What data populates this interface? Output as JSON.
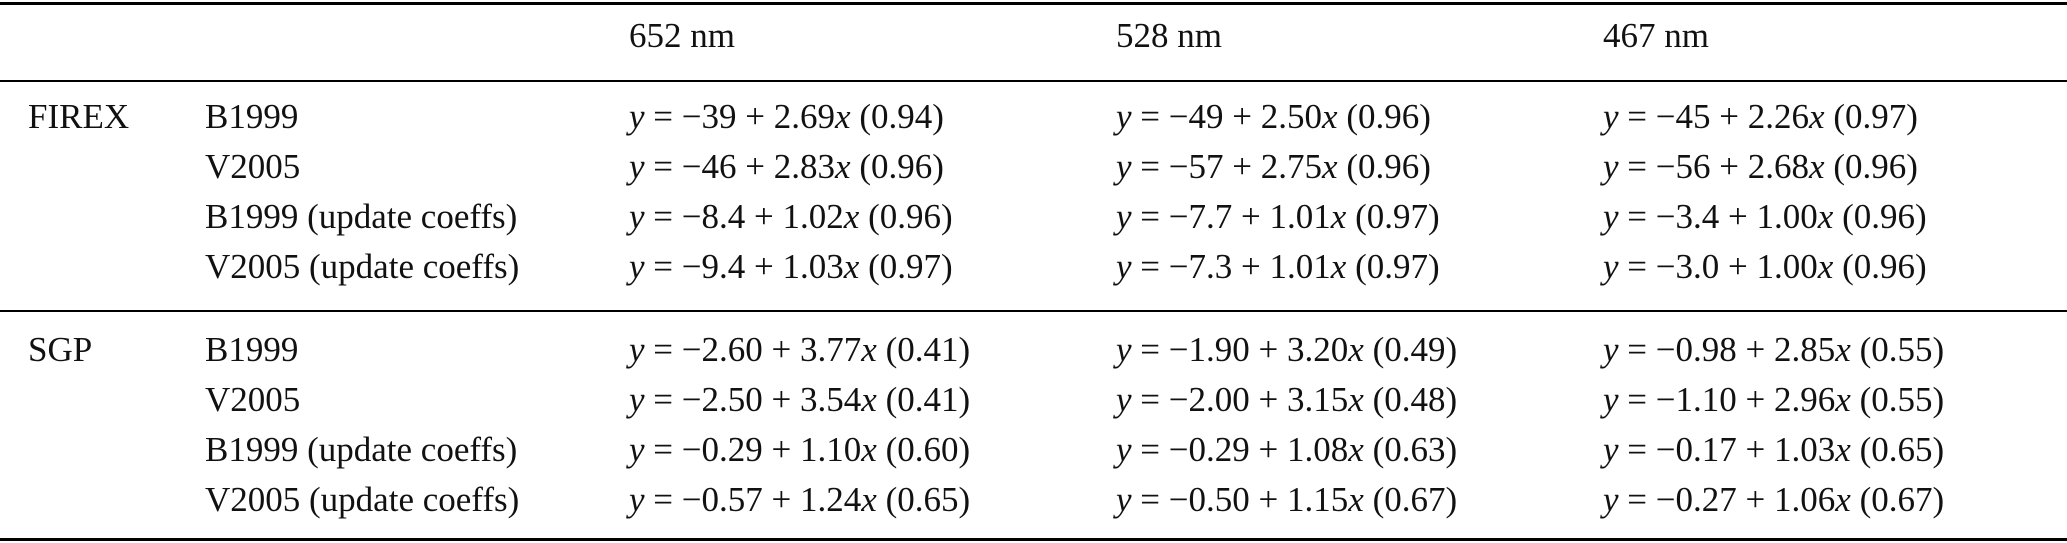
{
  "table": {
    "headers": [
      "",
      "",
      "652 nm",
      "528 nm",
      "467 nm"
    ],
    "groups": [
      {
        "name": "FIREX",
        "rows": [
          {
            "method": "B1999",
            "cells": [
              "y = −39 + 2.69x (0.94)",
              "y = −49 + 2.50x (0.96)",
              "y = −45 + 2.26x (0.97)"
            ]
          },
          {
            "method": "V2005",
            "cells": [
              "y = −46 + 2.83x (0.96)",
              "y = −57 + 2.75x (0.96)",
              "y = −56 + 2.68x (0.96)"
            ]
          },
          {
            "method": "B1999 (update coeffs)",
            "cells": [
              "y = −8.4 + 1.02x (0.96)",
              "y = −7.7 + 1.01x (0.97)",
              "y = −3.4 + 1.00x (0.96)"
            ]
          },
          {
            "method": "V2005 (update coeffs)",
            "cells": [
              "y = −9.4 + 1.03x (0.97)",
              "y = −7.3 + 1.01x (0.97)",
              "y = −3.0 + 1.00x (0.96)"
            ]
          }
        ]
      },
      {
        "name": "SGP",
        "rows": [
          {
            "method": "B1999",
            "cells": [
              "y = −2.60 + 3.77x (0.41)",
              "y = −1.90 + 3.20x (0.49)",
              "y = −0.98 + 2.85x (0.55)"
            ]
          },
          {
            "method": "V2005",
            "cells": [
              "y = −2.50 + 3.54x (0.41)",
              "y = −2.00 + 3.15x (0.48)",
              "y = −1.10 + 2.96x (0.55)"
            ]
          },
          {
            "method": "B1999 (update coeffs)",
            "cells": [
              "y = −0.29 + 1.10x (0.60)",
              "y = −0.29 + 1.08x (0.63)",
              "y = −0.17 + 1.03x (0.65)"
            ]
          },
          {
            "method": "V2005 (update coeffs)",
            "cells": [
              "y = −0.57 + 1.24x (0.65)",
              "y = −0.50 + 1.15x (0.67)",
              "y = −0.27 + 1.06x (0.67)"
            ]
          }
        ]
      }
    ]
  }
}
